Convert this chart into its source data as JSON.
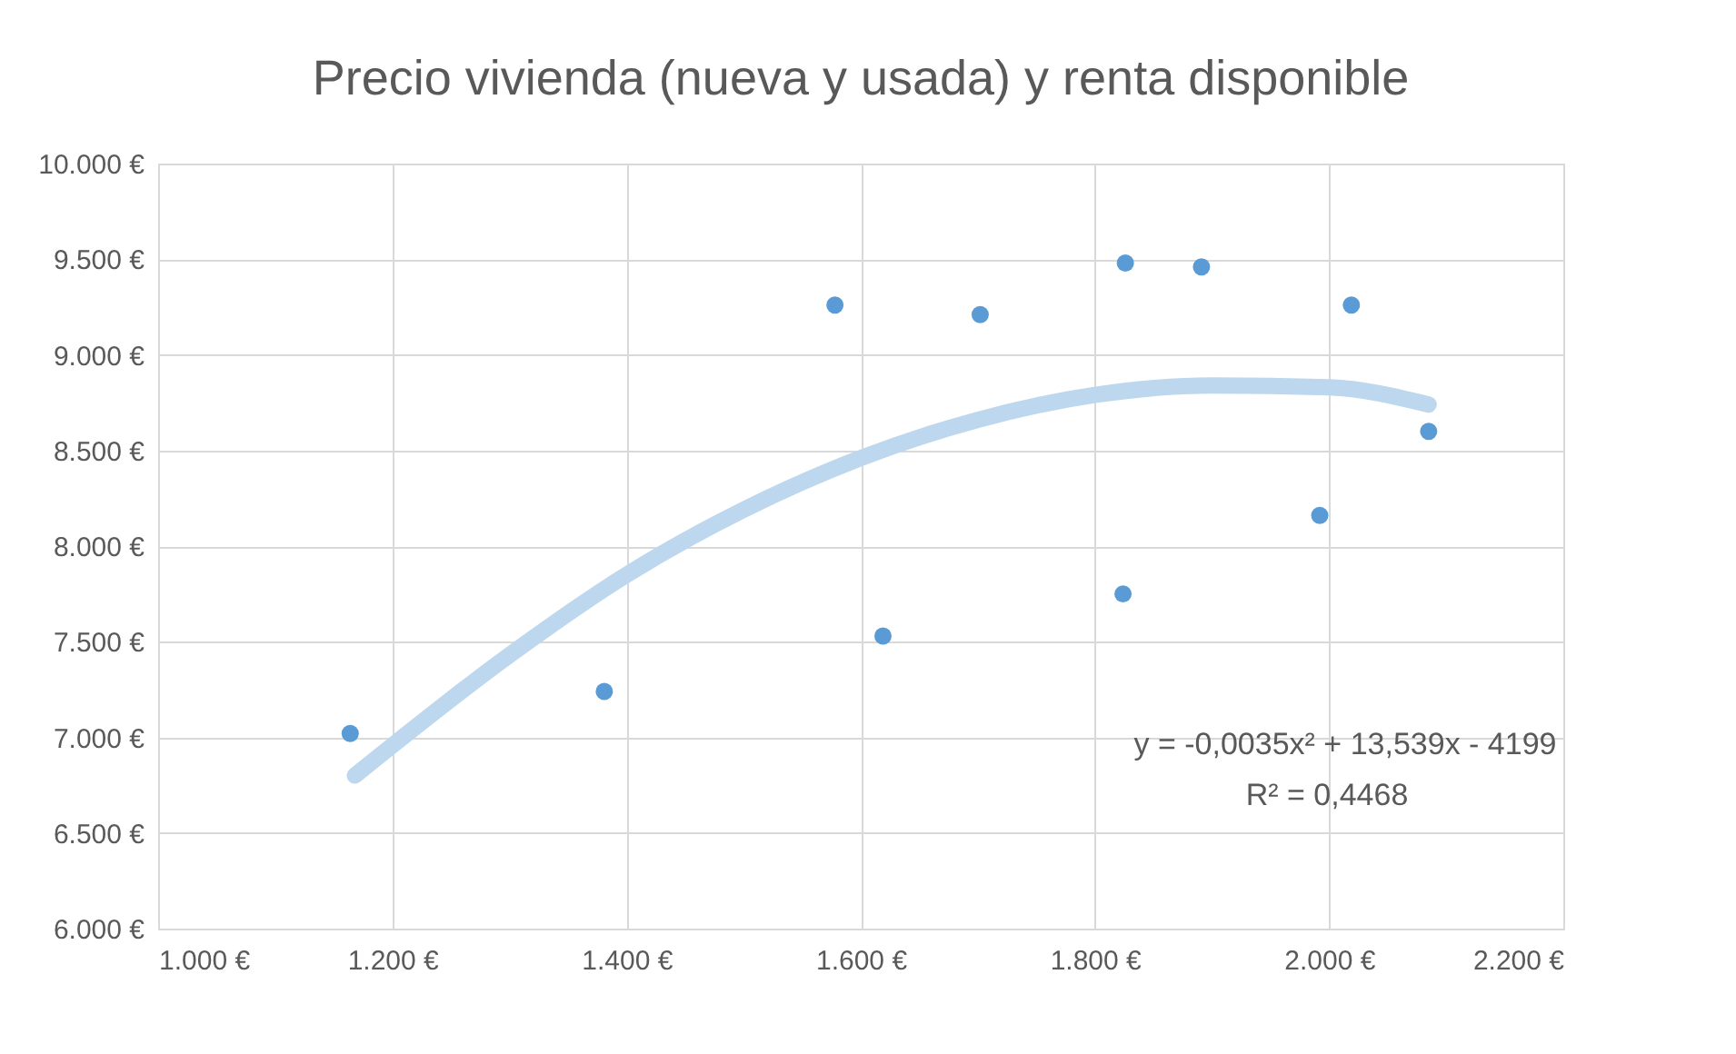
{
  "chart_data": {
    "type": "scatter",
    "title": "Precio vivienda (nueva y usada) y renta disponible",
    "series": [
      {
        "marker": "circle",
        "color": "#5b9bd5",
        "x": [
          1164,
          1381,
          1578,
          1619,
          1702,
          1826,
          1824,
          1891,
          1992,
          2019,
          2085
        ],
        "values": [
          7020,
          7240,
          9260,
          7530,
          9210,
          9480,
          7750,
          9460,
          8160,
          9260,
          8600
        ]
      },
      {
        "type": "line",
        "color": "#bdd7ee",
        "x": [
          1168,
          1300,
          1400,
          1500,
          1600,
          1700,
          1800,
          1900,
          2000,
          2085
        ],
        "values": [
          6800,
          7430,
          7850,
          8190,
          8460,
          8660,
          8790,
          8840,
          8830,
          8740
        ]
      }
    ],
    "xlim": [
      1000,
      2200
    ],
    "xticks": [
      {
        "value": 1000,
        "label": "1.000 €"
      },
      {
        "value": 1200,
        "label": "1.200 €"
      },
      {
        "value": 1400,
        "label": "1.400 €"
      },
      {
        "value": 1600,
        "label": "1.600 €"
      },
      {
        "value": 1800,
        "label": "1.800 €"
      },
      {
        "value": 2000,
        "label": "2.000 €"
      },
      {
        "value": 2200,
        "label": "2.200 €"
      }
    ],
    "ylim": [
      6000,
      10000
    ],
    "yticks": [
      {
        "value": 6000,
        "label": "6.000 €"
      },
      {
        "value": 6500,
        "label": "6.500 €"
      },
      {
        "value": 7000,
        "label": "7.000 €"
      },
      {
        "value": 7500,
        "label": "7.500 €"
      },
      {
        "value": 8000,
        "label": "8.000 €"
      },
      {
        "value": 8500,
        "label": "8.500 €"
      },
      {
        "value": 9000,
        "label": "9.000 €"
      },
      {
        "value": 9500,
        "label": "9.500 €"
      },
      {
        "value": 10000,
        "label": "10.000 €"
      }
    ],
    "grid": true,
    "annotations": [
      "y = -0,0035x² + 13,539x - 4199",
      "R² = 0,4468"
    ]
  }
}
